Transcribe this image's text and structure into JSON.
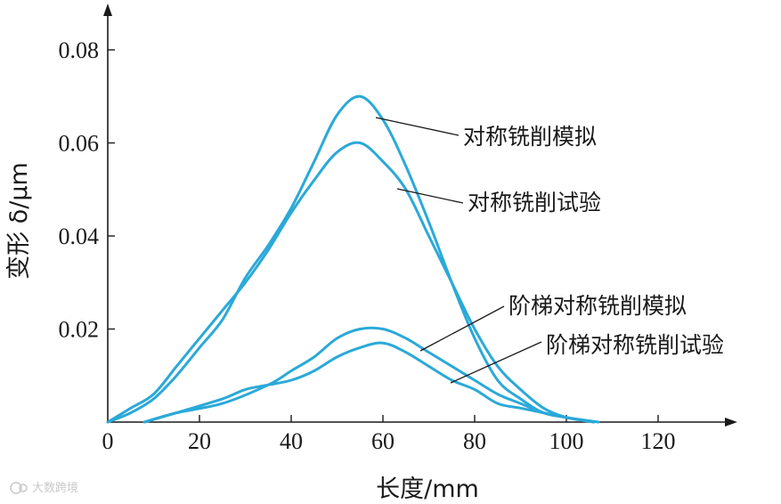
{
  "chart_data": {
    "type": "line",
    "xlabel": "长度/mm",
    "ylabel": "变形 δ/μm",
    "xlim": [
      0,
      135
    ],
    "ylim": [
      0,
      0.085
    ],
    "x_ticks": [
      0,
      20,
      40,
      60,
      80,
      100,
      120
    ],
    "y_ticks": [
      0.02,
      0.04,
      0.06,
      0.08
    ],
    "x_tick_labels": [
      "0",
      "20",
      "40",
      "60",
      "80",
      "100",
      "120"
    ],
    "y_tick_labels": [
      "0.02",
      "0.04",
      "0.06",
      "0.08"
    ],
    "grid": false,
    "legend": "none",
    "line_color": "#2aa9d8",
    "series": [
      {
        "name": "对称铣削模拟",
        "points": [
          [
            0,
            0
          ],
          [
            5,
            0.002
          ],
          [
            10,
            0.005
          ],
          [
            15,
            0.01
          ],
          [
            20,
            0.016
          ],
          [
            25,
            0.022
          ],
          [
            30,
            0.031
          ],
          [
            35,
            0.038
          ],
          [
            40,
            0.046
          ],
          [
            45,
            0.056
          ],
          [
            50,
            0.066
          ],
          [
            55,
            0.07
          ],
          [
            60,
            0.065
          ],
          [
            65,
            0.055
          ],
          [
            70,
            0.043
          ],
          [
            75,
            0.03
          ],
          [
            80,
            0.018
          ],
          [
            85,
            0.009
          ],
          [
            90,
            0.005
          ],
          [
            95,
            0.002
          ],
          [
            100,
            0.001
          ],
          [
            106,
            0
          ]
        ]
      },
      {
        "name": "对称铣削试验",
        "points": [
          [
            0,
            0
          ],
          [
            5,
            0.003
          ],
          [
            10,
            0.006
          ],
          [
            15,
            0.012
          ],
          [
            20,
            0.018
          ],
          [
            25,
            0.024
          ],
          [
            30,
            0.03
          ],
          [
            35,
            0.037
          ],
          [
            40,
            0.045
          ],
          [
            45,
            0.052
          ],
          [
            50,
            0.058
          ],
          [
            55,
            0.06
          ],
          [
            60,
            0.056
          ],
          [
            65,
            0.05
          ],
          [
            70,
            0.04
          ],
          [
            75,
            0.03
          ],
          [
            80,
            0.02
          ],
          [
            85,
            0.012
          ],
          [
            90,
            0.007
          ],
          [
            95,
            0.003
          ],
          [
            100,
            0.001
          ],
          [
            106,
            0
          ]
        ]
      },
      {
        "name": "阶梯对称铣削模拟",
        "points": [
          [
            8,
            0
          ],
          [
            15,
            0.002
          ],
          [
            25,
            0.004
          ],
          [
            35,
            0.008
          ],
          [
            40,
            0.011
          ],
          [
            45,
            0.014
          ],
          [
            50,
            0.018
          ],
          [
            55,
            0.02
          ],
          [
            60,
            0.02
          ],
          [
            65,
            0.018
          ],
          [
            70,
            0.015
          ],
          [
            75,
            0.012
          ],
          [
            80,
            0.009
          ],
          [
            85,
            0.006
          ],
          [
            90,
            0.004
          ],
          [
            95,
            0.002
          ],
          [
            100,
            0.001
          ],
          [
            107,
            0
          ]
        ]
      },
      {
        "name": "阶梯对称铣削试验",
        "points": [
          [
            8,
            0
          ],
          [
            15,
            0.002
          ],
          [
            25,
            0.005
          ],
          [
            30,
            0.007
          ],
          [
            35,
            0.008
          ],
          [
            40,
            0.009
          ],
          [
            45,
            0.011
          ],
          [
            50,
            0.014
          ],
          [
            55,
            0.016
          ],
          [
            60,
            0.017
          ],
          [
            65,
            0.015
          ],
          [
            70,
            0.012
          ],
          [
            75,
            0.009
          ],
          [
            80,
            0.007
          ],
          [
            85,
            0.004
          ],
          [
            90,
            0.003
          ],
          [
            95,
            0.002
          ],
          [
            100,
            0.001
          ],
          [
            106,
            0
          ]
        ]
      }
    ],
    "annotations": [
      {
        "text": "对称铣削模拟",
        "series": 0
      },
      {
        "text": "对称铣削试验",
        "series": 1
      },
      {
        "text": "阶梯对称铣削模拟",
        "series": 2
      },
      {
        "text": "阶梯对称铣削试验",
        "series": 3
      }
    ]
  },
  "watermark": "大数跨境"
}
